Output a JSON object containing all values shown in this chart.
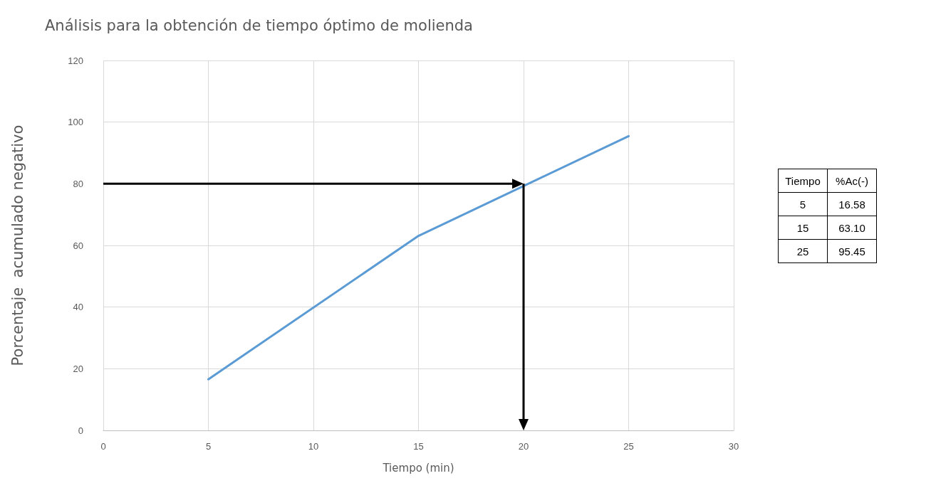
{
  "chart_data": [
    {
      "type": "line",
      "title": "Análisis para la obtención de tiempo óptimo de molienda",
      "xlabel": "Tiempo (min)",
      "ylabel": "Porcentaje  acumulado negativo",
      "x": [
        5,
        15,
        25
      ],
      "series": [
        {
          "color": "#5b9bd5",
          "values": [
            16.58,
            63.1,
            95.45
          ]
        }
      ],
      "xlim": [
        0,
        30
      ],
      "xticks": [
        0,
        5,
        10,
        15,
        20,
        25,
        30
      ],
      "ylim": [
        0,
        120
      ],
      "yticks": [
        0,
        20,
        40,
        60,
        80,
        100,
        120
      ],
      "grid": true,
      "marker": "none",
      "line_style": "solid",
      "ref_lines": [
        {
          "axis": "y",
          "value": 80,
          "color": "#000000"
        },
        {
          "axis": "x",
          "value": 20,
          "color": "#000000"
        }
      ]
    },
    {
      "type": "other",
      "annotations": [
        "Tiempo",
        "%Ac(-)",
        "5",
        "16.58",
        "15",
        "63.10",
        "25",
        "95.45"
      ]
    }
  ]
}
